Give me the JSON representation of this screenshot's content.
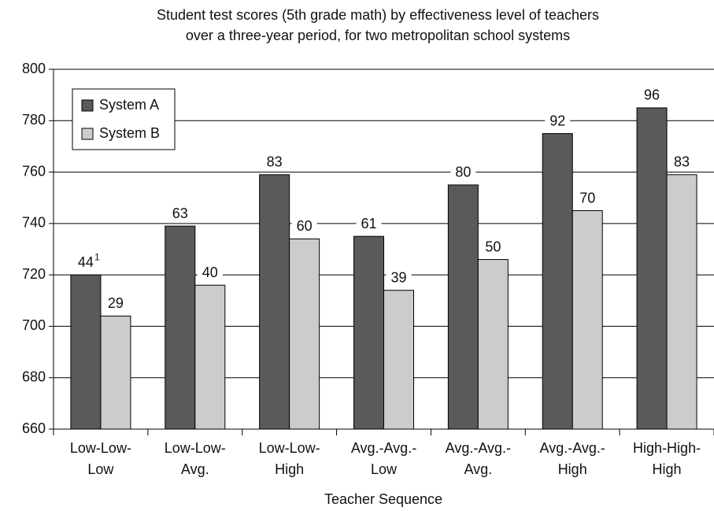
{
  "chart_data": {
    "type": "bar",
    "title": [
      "Student test scores (5th grade math) by effectiveness level of teachers",
      "over a three-year period, for two metropolitan school systems"
    ],
    "x_label": "Teacher Sequence",
    "categories": [
      [
        "Low-Low-",
        "Low"
      ],
      [
        "Low-Low-",
        "Avg."
      ],
      [
        "Low-Low-",
        "High"
      ],
      [
        "Avg.-Avg.-",
        "Low"
      ],
      [
        "Avg.-Avg.-",
        "Avg."
      ],
      [
        "Avg.-Avg.-",
        "High"
      ],
      [
        "High-High-",
        "High"
      ]
    ],
    "series": [
      {
        "name": "System A",
        "color": "#5a5a5a",
        "values": [
          720,
          739,
          759,
          735,
          755,
          775,
          785
        ],
        "annotations": [
          {
            "value": 44,
            "superscript": "1"
          },
          63,
          83,
          61,
          80,
          92,
          96
        ]
      },
      {
        "name": "System B",
        "color": "#cccccc",
        "values": [
          704,
          716,
          734,
          714,
          726,
          745,
          759
        ],
        "annotations": [
          29,
          40,
          60,
          39,
          50,
          70,
          83
        ]
      }
    ],
    "ylim": [
      660,
      800
    ],
    "yticks": [
      660,
      680,
      700,
      720,
      740,
      760,
      780,
      800
    ],
    "grid": true,
    "legend": "upper left"
  }
}
